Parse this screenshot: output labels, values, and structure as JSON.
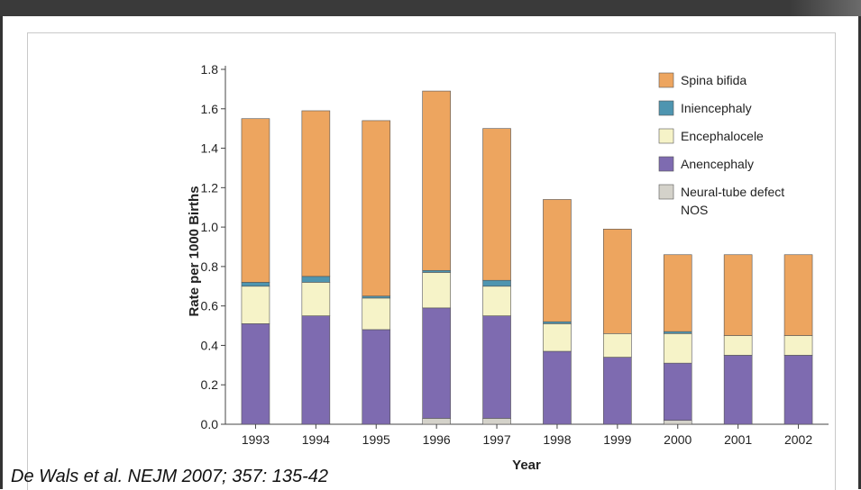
{
  "citation": "De Wals et al. NEJM 2007; 357: 135-42",
  "colors": {
    "spina_bifida": "#EDA55F",
    "iniencephaly": "#4E95B0",
    "encephalocele": "#F6F3C8",
    "anencephaly": "#7E6BB0",
    "nos": "#D4D2CA"
  },
  "chart_data": {
    "type": "bar",
    "stacked": true,
    "categories": [
      "1993",
      "1994",
      "1995",
      "1996",
      "1997",
      "1998",
      "1999",
      "2000",
      "2001",
      "2002"
    ],
    "series": [
      {
        "name": "Neural-tube defect NOS",
        "color_key": "nos",
        "values": [
          0.0,
          0.0,
          0.0,
          0.03,
          0.03,
          0.0,
          0.0,
          0.02,
          0.0,
          0.0
        ]
      },
      {
        "name": "Anencephaly",
        "color_key": "anencephaly",
        "values": [
          0.51,
          0.55,
          0.48,
          0.56,
          0.52,
          0.37,
          0.34,
          0.29,
          0.35,
          0.35
        ]
      },
      {
        "name": "Encephalocele",
        "color_key": "encephalocele",
        "values": [
          0.19,
          0.17,
          0.16,
          0.18,
          0.15,
          0.14,
          0.12,
          0.15,
          0.1,
          0.1
        ]
      },
      {
        "name": "Iniencephaly",
        "color_key": "iniencephaly",
        "values": [
          0.02,
          0.03,
          0.01,
          0.01,
          0.03,
          0.01,
          0.0,
          0.01,
          0.0,
          0.0
        ]
      },
      {
        "name": "Spina bifida",
        "color_key": "spina_bifida",
        "values": [
          0.83,
          0.84,
          0.89,
          0.91,
          0.77,
          0.62,
          0.53,
          0.39,
          0.41,
          0.41
        ]
      }
    ],
    "legend_order": [
      "Spina bifida",
      "Iniencephaly",
      "Encephalocele",
      "Anencephaly",
      "Neural-tube defect NOS"
    ],
    "legend_placement": "top-right",
    "xlabel": "Year",
    "ylabel": "Rate per 1000 Births",
    "ylim": [
      0,
      1.8
    ],
    "yticks": [
      "0.0",
      "0.2",
      "0.4",
      "0.6",
      "0.8",
      "1.0",
      "1.2",
      "1.4",
      "1.6",
      "1.8"
    ],
    "grid": false
  }
}
